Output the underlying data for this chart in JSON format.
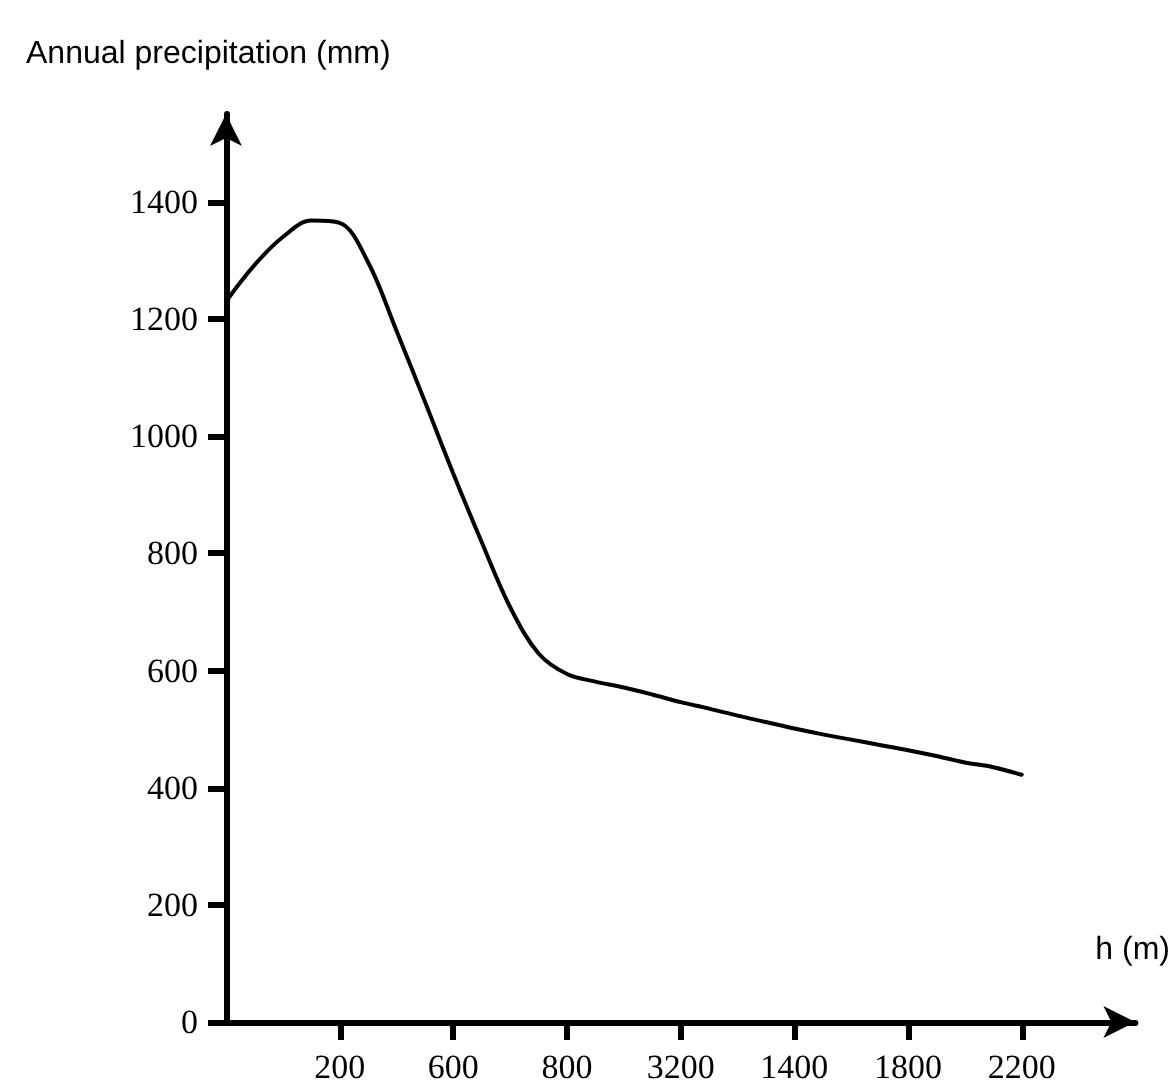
{
  "chart_data": {
    "type": "line",
    "xlabel": "h (m)",
    "ylabel": "Annual precipitation (mm)",
    "categories": [
      null,
      null,
      null,
      null,
      "200",
      null,
      null,
      null,
      "600",
      null,
      null,
      null,
      "800",
      null,
      null,
      null,
      "3200",
      null,
      null,
      null,
      "1400",
      null,
      null,
      null,
      "1800",
      null,
      null,
      null,
      "2200",
      null,
      null,
      null
    ],
    "series": [
      {
        "color": "#000000",
        "values": [
          1230,
          1292,
          1340,
          1368,
          1364,
          1297,
          1180,
          1059,
          936,
          819,
          708,
          629,
          594,
          581,
          571,
          559,
          546,
          535,
          523,
          512,
          501,
          491,
          482,
          473,
          464,
          454,
          443,
          435,
          422,
          null,
          null,
          null
        ]
      }
    ],
    "ylim": [
      0,
      1550
    ],
    "yticks": [
      0,
      200,
      400,
      600,
      800,
      1000,
      1200,
      1400
    ],
    "grid": false,
    "marker": "none",
    "line_style": "solid"
  }
}
